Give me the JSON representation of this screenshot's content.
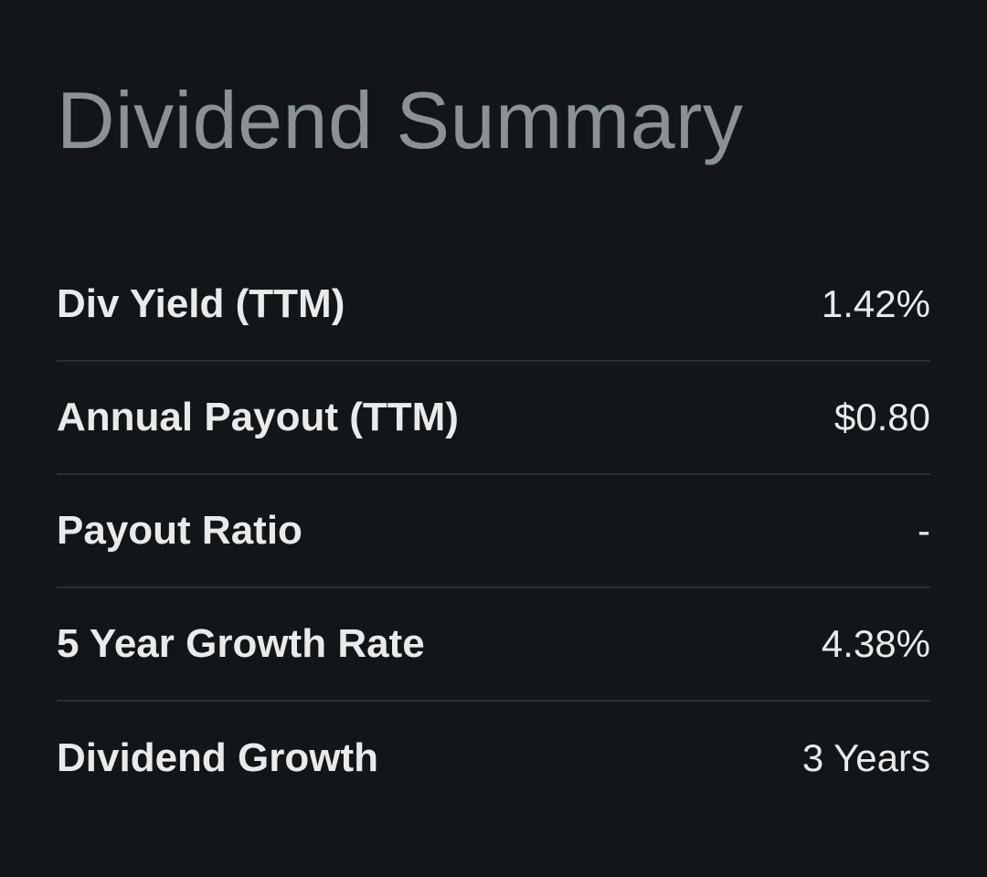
{
  "title": "Dividend Summary",
  "rows": [
    {
      "label": "Div Yield (TTM)",
      "value": "1.42%"
    },
    {
      "label": "Annual Payout (TTM)",
      "value": "$0.80"
    },
    {
      "label": "Payout Ratio",
      "value": "-"
    },
    {
      "label": "5 Year Growth Rate",
      "value": "4.38%"
    },
    {
      "label": "Dividend Growth",
      "value": "3 Years"
    }
  ],
  "colors": {
    "background": "#131618",
    "title": "#8a9296",
    "text": "#e8eaeb",
    "divider": "#2b2f32"
  }
}
